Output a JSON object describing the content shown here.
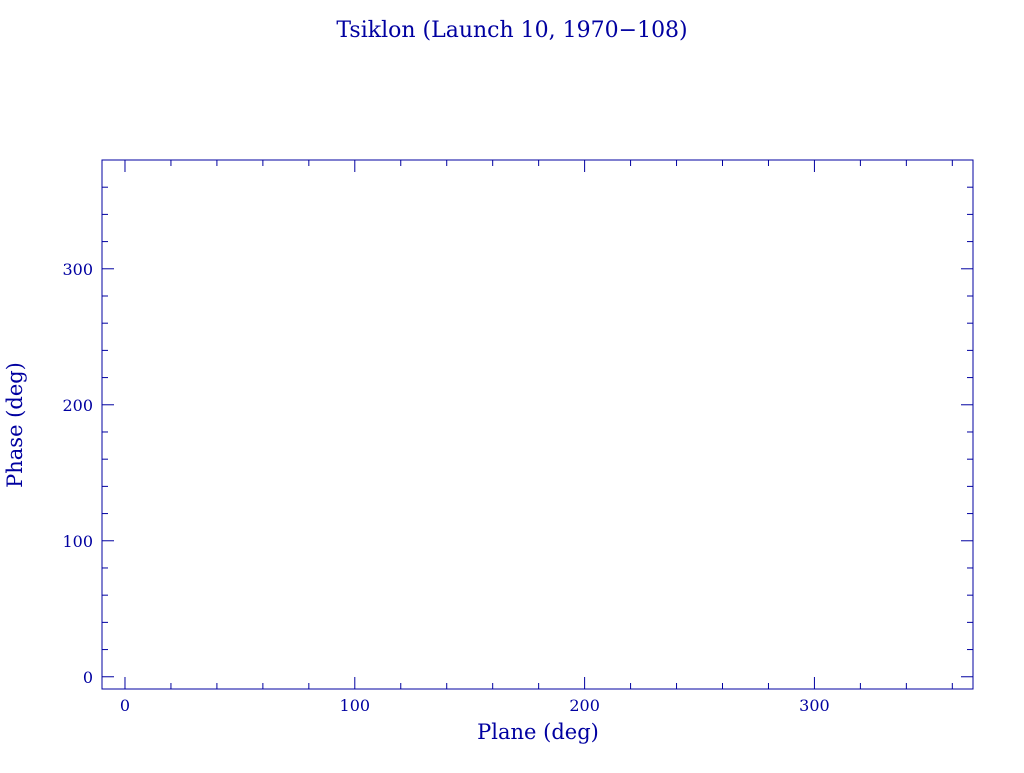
{
  "chart_data": {
    "type": "scatter",
    "title": "Tsiklon (Launch 10, 1970−108)",
    "xlabel": "Plane (deg)",
    "ylabel": "Phase (deg)",
    "xlim": [
      -10,
      369
    ],
    "ylim": [
      -9,
      380
    ],
    "xticks": [
      0,
      100,
      200,
      300
    ],
    "yticks": [
      0,
      100,
      200,
      300
    ],
    "xticklabels": [
      "0",
      "100",
      "200",
      "300"
    ],
    "yticklabels": [
      "0",
      "100",
      "200",
      "300"
    ],
    "minor_tick_step": 20,
    "grid": false,
    "series": [],
    "color": "#0000a0"
  }
}
